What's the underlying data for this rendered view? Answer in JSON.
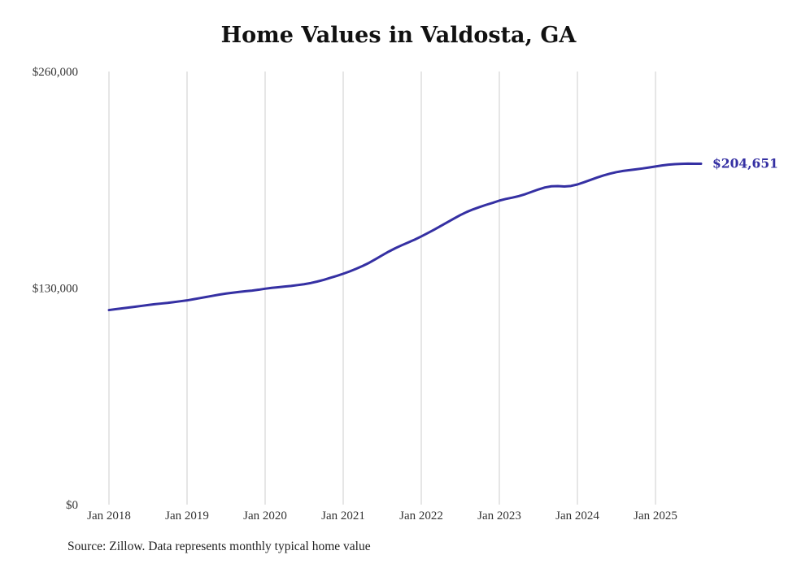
{
  "chart_data": {
    "type": "line",
    "title": "Home Values in Valdosta, GA",
    "series_name": "Monthly typical home value",
    "x": [
      "Jan 2018",
      "Feb 2018",
      "Mar 2018",
      "Apr 2018",
      "May 2018",
      "Jun 2018",
      "Jul 2018",
      "Aug 2018",
      "Sep 2018",
      "Oct 2018",
      "Nov 2018",
      "Dec 2018",
      "Jan 2019",
      "Feb 2019",
      "Mar 2019",
      "Apr 2019",
      "May 2019",
      "Jun 2019",
      "Jul 2019",
      "Aug 2019",
      "Sep 2019",
      "Oct 2019",
      "Nov 2019",
      "Dec 2019",
      "Jan 2020",
      "Feb 2020",
      "Mar 2020",
      "Apr 2020",
      "May 2020",
      "Jun 2020",
      "Jul 2020",
      "Aug 2020",
      "Sep 2020",
      "Oct 2020",
      "Nov 2020",
      "Dec 2020",
      "Jan 2021",
      "Feb 2021",
      "Mar 2021",
      "Apr 2021",
      "May 2021",
      "Jun 2021",
      "Jul 2021",
      "Aug 2021",
      "Sep 2021",
      "Oct 2021",
      "Nov 2021",
      "Dec 2021",
      "Jan 2022",
      "Feb 2022",
      "Mar 2022",
      "Apr 2022",
      "May 2022",
      "Jun 2022",
      "Jul 2022",
      "Aug 2022",
      "Sep 2022",
      "Oct 2022",
      "Nov 2022",
      "Dec 2022",
      "Jan 2023",
      "Feb 2023",
      "Mar 2023",
      "Apr 2023",
      "May 2023",
      "Jun 2023",
      "Jul 2023",
      "Aug 2023",
      "Sep 2023",
      "Oct 2023",
      "Nov 2023",
      "Dec 2023",
      "Jan 2024",
      "Feb 2024",
      "Mar 2024",
      "Apr 2024",
      "May 2024",
      "Jun 2024",
      "Jul 2024",
      "Aug 2024",
      "Sep 2024",
      "Oct 2024",
      "Nov 2024",
      "Dec 2024",
      "Jan 2025",
      "Feb 2025",
      "Mar 2025",
      "Apr 2025",
      "May 2025",
      "Jun 2025",
      "Jul 2025",
      "Aug 2025"
    ],
    "values": [
      116800,
      117300,
      117800,
      118300,
      118800,
      119300,
      119800,
      120300,
      120700,
      121100,
      121600,
      122100,
      122600,
      123300,
      124000,
      124700,
      125400,
      126100,
      126700,
      127200,
      127700,
      128100,
      128500,
      129000,
      129600,
      130100,
      130500,
      130900,
      131300,
      131800,
      132300,
      133000,
      133900,
      134900,
      136100,
      137300,
      138600,
      140000,
      141600,
      143300,
      145200,
      147400,
      149700,
      151900,
      153900,
      155700,
      157400,
      159100,
      161000,
      163000,
      165100,
      167300,
      169500,
      171700,
      173800,
      175700,
      177300,
      178700,
      180000,
      181200,
      182500,
      183500,
      184300,
      185200,
      186400,
      187800,
      189200,
      190400,
      191100,
      191200,
      191000,
      191300,
      192200,
      193500,
      194900,
      196300,
      197600,
      198700,
      199600,
      200300,
      200800,
      201300,
      201800,
      202400,
      203000,
      203600,
      204100,
      204400,
      204600,
      204700,
      204650,
      204651
    ],
    "ylim": [
      0,
      260000
    ],
    "y_ticks": [
      {
        "value": 0,
        "label": "$0"
      },
      {
        "value": 130000,
        "label": "$130,000"
      },
      {
        "value": 260000,
        "label": "$260,000"
      }
    ],
    "x_tick_labels": [
      "Jan 2018",
      "Jan 2019",
      "Jan 2020",
      "Jan 2021",
      "Jan 2022",
      "Jan 2023",
      "Jan 2024",
      "Jan 2025"
    ],
    "x_tick_interval_months": 12,
    "end_value_label": "$204,651",
    "source_note": "Source: Zillow. Data represents monthly typical home value",
    "grid": "vertical",
    "legend": "none",
    "line_color": "#3530a3",
    "grid_color": "#cccccc",
    "text_color": "#333333"
  }
}
